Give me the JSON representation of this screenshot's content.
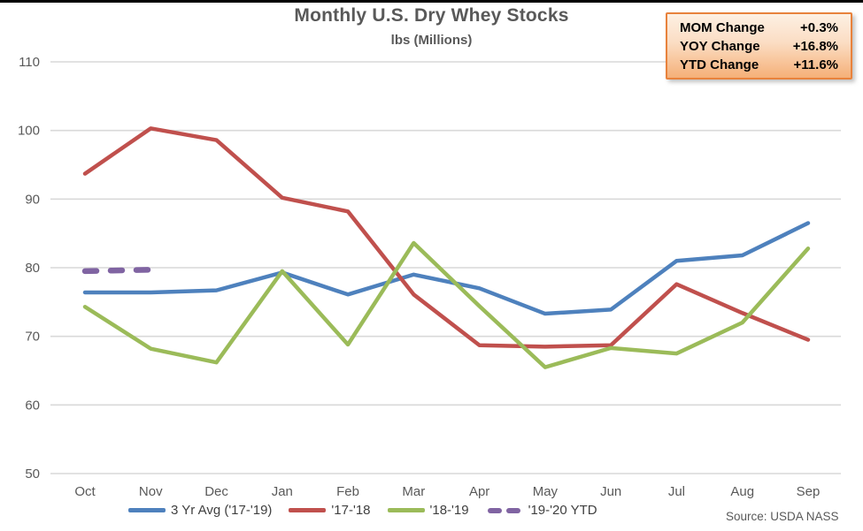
{
  "title": "Monthly U.S. Dry Whey Stocks",
  "subtitle": "lbs (Millions)",
  "info_box": {
    "rows": [
      {
        "label": "MOM Change",
        "value": "+0.3%"
      },
      {
        "label": "YOY Change",
        "value": "+16.8%"
      },
      {
        "label": "YTD Change",
        "value": "+11.6%"
      }
    ],
    "border_color": "#E8823C"
  },
  "source": "Source: USDA NASS",
  "colors": {
    "avg_line": "#4E81BD",
    "y1718_line": "#C0504D",
    "y1819_line": "#9BBB59",
    "y1920_line": "#8064A2",
    "gridline": "#D9D9D9",
    "axis_text": "#595959"
  },
  "chart_data": {
    "type": "line",
    "categories": [
      "Oct",
      "Nov",
      "Dec",
      "Jan",
      "Feb",
      "Mar",
      "Apr",
      "May",
      "Jun",
      "Jul",
      "Aug",
      "Sep"
    ],
    "series": [
      {
        "name": "3 Yr Avg ('17-'19)",
        "color": "#4E81BD",
        "style": "solid",
        "values": [
          76.4,
          76.4,
          76.7,
          79.3,
          76.1,
          79.0,
          77.0,
          73.3,
          73.9,
          81.0,
          81.8,
          86.5
        ]
      },
      {
        "name": "'17-'18",
        "color": "#C0504D",
        "style": "solid",
        "values": [
          93.7,
          100.3,
          98.6,
          90.2,
          88.2,
          76.1,
          68.7,
          68.5,
          68.7,
          77.6,
          73.4,
          69.5
        ]
      },
      {
        "name": "'18-'19",
        "color": "#9BBB59",
        "style": "solid",
        "values": [
          74.3,
          68.2,
          66.2,
          79.5,
          68.8,
          83.6,
          74.4,
          65.5,
          68.3,
          67.5,
          72.0,
          82.8
        ]
      },
      {
        "name": "'19-'20 YTD",
        "color": "#8064A2",
        "style": "dashed",
        "values": [
          79.5,
          79.7,
          null,
          null,
          null,
          null,
          null,
          null,
          null,
          null,
          null,
          null
        ]
      }
    ],
    "ylim": [
      50,
      110
    ],
    "ytick_step": 10,
    "grid": true,
    "legend_position": "bottom"
  }
}
